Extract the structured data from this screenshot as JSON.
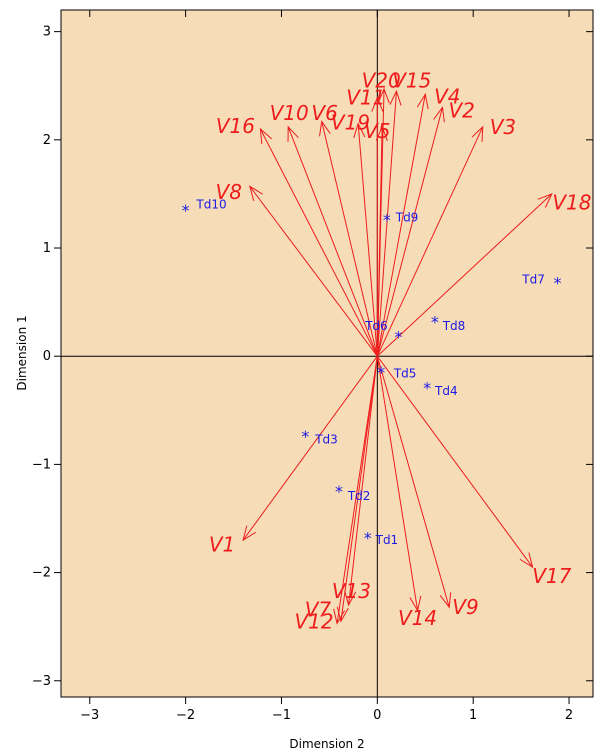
{
  "colors": {
    "plot_background": "#f7dcb8",
    "vector": "#ee1c1c",
    "point": "#1a1ae6",
    "axis": "#000000"
  },
  "chart_data": {
    "type": "scatter",
    "subtype": "biplot",
    "title": "",
    "xlabel": "Dimension 2",
    "ylabel": "Dimension 1",
    "xlim": [
      -3.3,
      2.25
    ],
    "ylim": [
      -3.15,
      3.2
    ],
    "xticks": [
      -3,
      -2,
      -1,
      0,
      1,
      2
    ],
    "yticks": [
      -3,
      -2,
      -1,
      0,
      1,
      2,
      3
    ],
    "grid": false,
    "zero_lines": true,
    "vectors": [
      {
        "name": "V1",
        "x": -1.4,
        "y": -1.7,
        "lx": -1.62,
        "ly": -1.74
      },
      {
        "name": "V2",
        "x": 0.68,
        "y": 2.3,
        "lx": 0.88,
        "ly": 2.27
      },
      {
        "name": "V3",
        "x": 1.1,
        "y": 2.12,
        "lx": 1.31,
        "ly": 2.12
      },
      {
        "name": "V4",
        "x": 0.5,
        "y": 2.42,
        "lx": 0.73,
        "ly": 2.4
      },
      {
        "name": "V5",
        "x": 0.05,
        "y": 2.12,
        "lx": 0.0,
        "ly": 2.08
      },
      {
        "name": "V6",
        "x": -0.58,
        "y": 2.17,
        "lx": -0.55,
        "ly": 2.25
      },
      {
        "name": "V7",
        "x": -0.38,
        "y": -2.45,
        "lx": -0.62,
        "ly": -2.34
      },
      {
        "name": "V8",
        "x": -1.33,
        "y": 1.57,
        "lx": -1.55,
        "ly": 1.52
      },
      {
        "name": "V9",
        "x": 0.75,
        "y": -2.32,
        "lx": 0.92,
        "ly": -2.32
      },
      {
        "name": "V10",
        "x": -0.93,
        "y": 2.12,
        "lx": -0.92,
        "ly": 2.25
      },
      {
        "name": "V11",
        "x": 0.0,
        "y": 2.39,
        "lx": -0.12,
        "ly": 2.39
      },
      {
        "name": "V12",
        "x": -0.42,
        "y": -2.47,
        "lx": -0.66,
        "ly": -2.45
      },
      {
        "name": "V13",
        "x": -0.3,
        "y": -2.3,
        "lx": -0.27,
        "ly": -2.17
      },
      {
        "name": "V14",
        "x": 0.42,
        "y": -2.35,
        "lx": 0.42,
        "ly": -2.42
      },
      {
        "name": "V15",
        "x": 0.2,
        "y": 2.45,
        "lx": 0.36,
        "ly": 2.55
      },
      {
        "name": "V16",
        "x": -1.22,
        "y": 2.1,
        "lx": -1.48,
        "ly": 2.13
      },
      {
        "name": "V17",
        "x": 1.62,
        "y": -1.95,
        "lx": 1.82,
        "ly": -2.03
      },
      {
        "name": "V18",
        "x": 1.82,
        "y": 1.5,
        "lx": 2.03,
        "ly": 1.42
      },
      {
        "name": "V19",
        "x": -0.2,
        "y": 2.15,
        "lx": -0.28,
        "ly": 2.16
      },
      {
        "name": "V20",
        "x": 0.07,
        "y": 2.47,
        "lx": 0.04,
        "ly": 2.55
      }
    ],
    "points": [
      {
        "name": "Td1",
        "x": -0.1,
        "y": -1.65,
        "lx": 0.1,
        "ly": -1.7
      },
      {
        "name": "Td2",
        "x": -0.4,
        "y": -1.22,
        "lx": -0.19,
        "ly": -1.29
      },
      {
        "name": "Td3",
        "x": -0.75,
        "y": -0.71,
        "lx": -0.53,
        "ly": -0.77
      },
      {
        "name": "Td4",
        "x": 0.52,
        "y": -0.26,
        "lx": 0.72,
        "ly": -0.32
      },
      {
        "name": "Td5",
        "x": 0.04,
        "y": -0.12,
        "lx": 0.29,
        "ly": -0.16
      },
      {
        "name": "Td6",
        "x": 0.22,
        "y": 0.21,
        "lx": -0.01,
        "ly": 0.28
      },
      {
        "name": "Td7",
        "x": 1.88,
        "y": 0.71,
        "lx": 1.63,
        "ly": 0.71
      },
      {
        "name": "Td8",
        "x": 0.6,
        "y": 0.35,
        "lx": 0.8,
        "ly": 0.28
      },
      {
        "name": "Td9",
        "x": 0.1,
        "y": 1.29,
        "lx": 0.31,
        "ly": 1.28
      },
      {
        "name": "Td10",
        "x": -2.0,
        "y": 1.38,
        "lx": -1.73,
        "ly": 1.4
      }
    ]
  }
}
